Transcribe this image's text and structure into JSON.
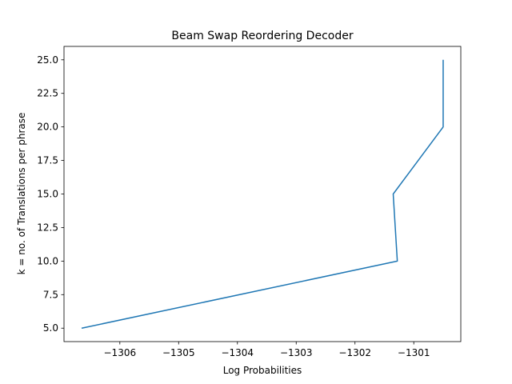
{
  "chart_data": {
    "type": "line",
    "title": "Beam Swap Reordering Decoder",
    "xlabel": "Log Probabilities",
    "ylabel": "k = no. of Translations per phrase",
    "series": [
      {
        "color": "#1f77b4",
        "x": [
          -1306.65,
          -1301.28,
          -1301.35,
          -1300.5,
          -1300.5
        ],
        "y": [
          5,
          10,
          15,
          20,
          25
        ]
      }
    ],
    "xlim": [
      -1306.95,
      -1300.2
    ],
    "ylim": [
      4.0,
      26.0
    ],
    "xticks": [
      -1306,
      -1305,
      -1304,
      -1303,
      -1302,
      -1301
    ],
    "xtick_labels": [
      "−1306",
      "−1305",
      "−1304",
      "−1303",
      "−1302",
      "−1301"
    ],
    "yticks": [
      5.0,
      7.5,
      10.0,
      12.5,
      15.0,
      17.5,
      20.0,
      22.5,
      25.0
    ],
    "ytick_labels": [
      "5.0",
      "7.5",
      "10.0",
      "12.5",
      "15.0",
      "17.5",
      "20.0",
      "22.5",
      "25.0"
    ],
    "grid": false,
    "legend": false
  }
}
